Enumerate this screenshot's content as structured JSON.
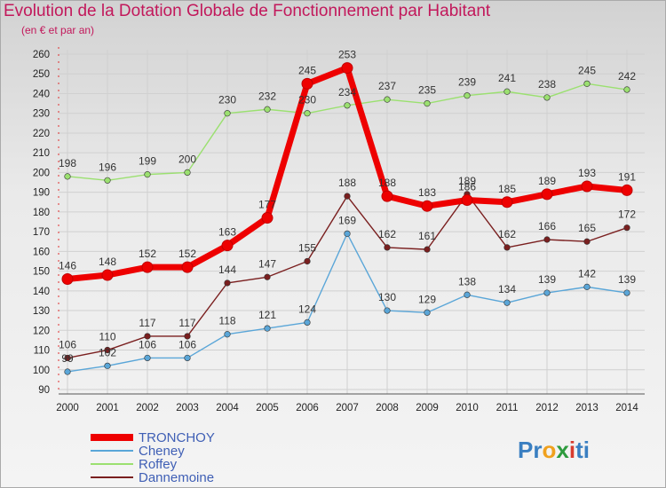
{
  "header": {
    "title": "Evolution de la Dotation Globale de Fonctionnement par Habitant",
    "subtitle": "(en € et par an)"
  },
  "logo": {
    "parts": [
      "Pr",
      "o",
      "x",
      "i",
      "ti"
    ],
    "colors": [
      "#3a7fc1",
      "#f0a11e",
      "#2e9b3e",
      "#d83c2e",
      "#3a7fc1"
    ]
  },
  "chart_data": {
    "type": "line",
    "title": "Evolution de la Dotation Globale de Fonctionnement par Habitant",
    "subtitle": "(en € et par an)",
    "xlabel": "",
    "ylabel": "",
    "x": [
      2000,
      2001,
      2002,
      2003,
      2004,
      2005,
      2006,
      2007,
      2008,
      2009,
      2010,
      2011,
      2012,
      2013,
      2014
    ],
    "ylim": [
      90,
      260
    ],
    "yticks": [
      90,
      100,
      110,
      120,
      130,
      140,
      150,
      160,
      170,
      180,
      190,
      200,
      210,
      220,
      230,
      240,
      250,
      260
    ],
    "grid": true,
    "legend_position": "bottom-left",
    "series": [
      {
        "name": "Roffey",
        "color": "#9be070",
        "values": [
          198,
          196,
          199,
          200,
          230,
          232,
          230,
          234,
          237,
          235,
          239,
          241,
          238,
          245,
          242
        ]
      },
      {
        "name": "Cheney",
        "color": "#5aa6d8",
        "values": [
          99,
          102,
          106,
          106,
          118,
          121,
          124,
          169,
          130,
          129,
          138,
          134,
          139,
          142,
          139
        ]
      },
      {
        "name": "Dannemoine",
        "color": "#7a1f1f",
        "values": [
          106,
          110,
          117,
          117,
          144,
          147,
          155,
          188,
          162,
          161,
          189,
          162,
          166,
          165,
          172
        ]
      },
      {
        "name": "TRONCHOY",
        "color": "#ee0000",
        "values": [
          146,
          148,
          152,
          152,
          163,
          177,
          245,
          253,
          188,
          183,
          186,
          185,
          189,
          193,
          191
        ]
      }
    ]
  }
}
